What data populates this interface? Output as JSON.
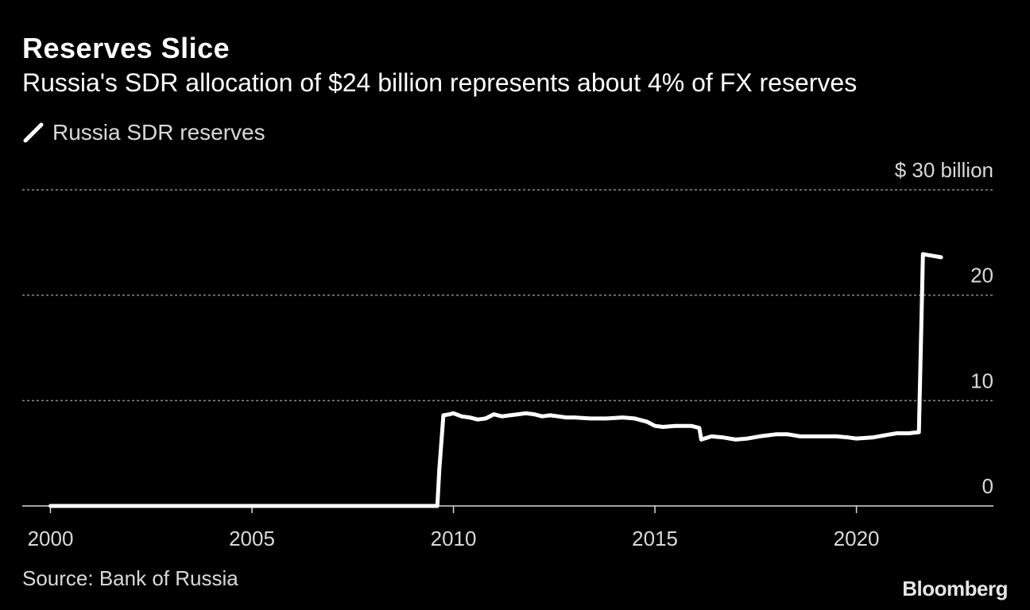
{
  "chart_data": {
    "type": "line",
    "title": "Reserves Slice",
    "subtitle": "Russia's SDR allocation of $24 billion represents about 4% of FX reserves",
    "series": [
      {
        "name": "Russia SDR reserves",
        "color": "#ffffff",
        "points": [
          [
            2000.0,
            0.0
          ],
          [
            2009.6,
            0.0
          ],
          [
            2009.65,
            3.5
          ],
          [
            2009.75,
            8.6
          ],
          [
            2009.9,
            8.7
          ],
          [
            2010.0,
            8.8
          ],
          [
            2010.2,
            8.5
          ],
          [
            2010.4,
            8.4
          ],
          [
            2010.6,
            8.2
          ],
          [
            2010.8,
            8.3
          ],
          [
            2011.0,
            8.7
          ],
          [
            2011.2,
            8.5
          ],
          [
            2011.4,
            8.6
          ],
          [
            2011.6,
            8.7
          ],
          [
            2011.8,
            8.8
          ],
          [
            2012.0,
            8.7
          ],
          [
            2012.2,
            8.5
          ],
          [
            2012.4,
            8.6
          ],
          [
            2012.6,
            8.5
          ],
          [
            2012.8,
            8.4
          ],
          [
            2013.0,
            8.4
          ],
          [
            2013.4,
            8.3
          ],
          [
            2013.8,
            8.3
          ],
          [
            2014.2,
            8.4
          ],
          [
            2014.5,
            8.3
          ],
          [
            2014.8,
            8.0
          ],
          [
            2015.0,
            7.6
          ],
          [
            2015.2,
            7.5
          ],
          [
            2015.5,
            7.6
          ],
          [
            2015.9,
            7.6
          ],
          [
            2016.1,
            7.4
          ],
          [
            2016.15,
            6.3
          ],
          [
            2016.4,
            6.6
          ],
          [
            2016.7,
            6.5
          ],
          [
            2017.0,
            6.3
          ],
          [
            2017.3,
            6.4
          ],
          [
            2017.6,
            6.6
          ],
          [
            2018.0,
            6.8
          ],
          [
            2018.3,
            6.8
          ],
          [
            2018.6,
            6.6
          ],
          [
            2019.0,
            6.6
          ],
          [
            2019.5,
            6.6
          ],
          [
            2019.8,
            6.5
          ],
          [
            2020.0,
            6.4
          ],
          [
            2020.4,
            6.5
          ],
          [
            2020.7,
            6.7
          ],
          [
            2021.0,
            6.9
          ],
          [
            2021.3,
            6.9
          ],
          [
            2021.55,
            7.0
          ],
          [
            2021.65,
            23.9
          ],
          [
            2021.8,
            23.8
          ],
          [
            2022.1,
            23.6
          ]
        ]
      }
    ],
    "xlabel": "",
    "ylabel": "",
    "xlim": [
      1999.3,
      2023.4
    ],
    "ylim": [
      0,
      30
    ],
    "x_ticks": [
      "2000",
      "2005",
      "2010",
      "2015",
      "2020"
    ],
    "y_ticks": [
      "0",
      "10",
      "20",
      "$  30 billion"
    ],
    "y_tick_values": [
      0,
      10,
      20,
      30
    ],
    "x_tick_values": [
      2000,
      2005,
      2010,
      2015,
      2020
    ],
    "grid": true,
    "legend": "top-left"
  },
  "source": "Source: Bank of Russia",
  "brand": "Bloomberg",
  "colors": {
    "background": "#000000",
    "line": "#ffffff",
    "grid": "#8c8c8c",
    "text": "#d9d9d9"
  }
}
